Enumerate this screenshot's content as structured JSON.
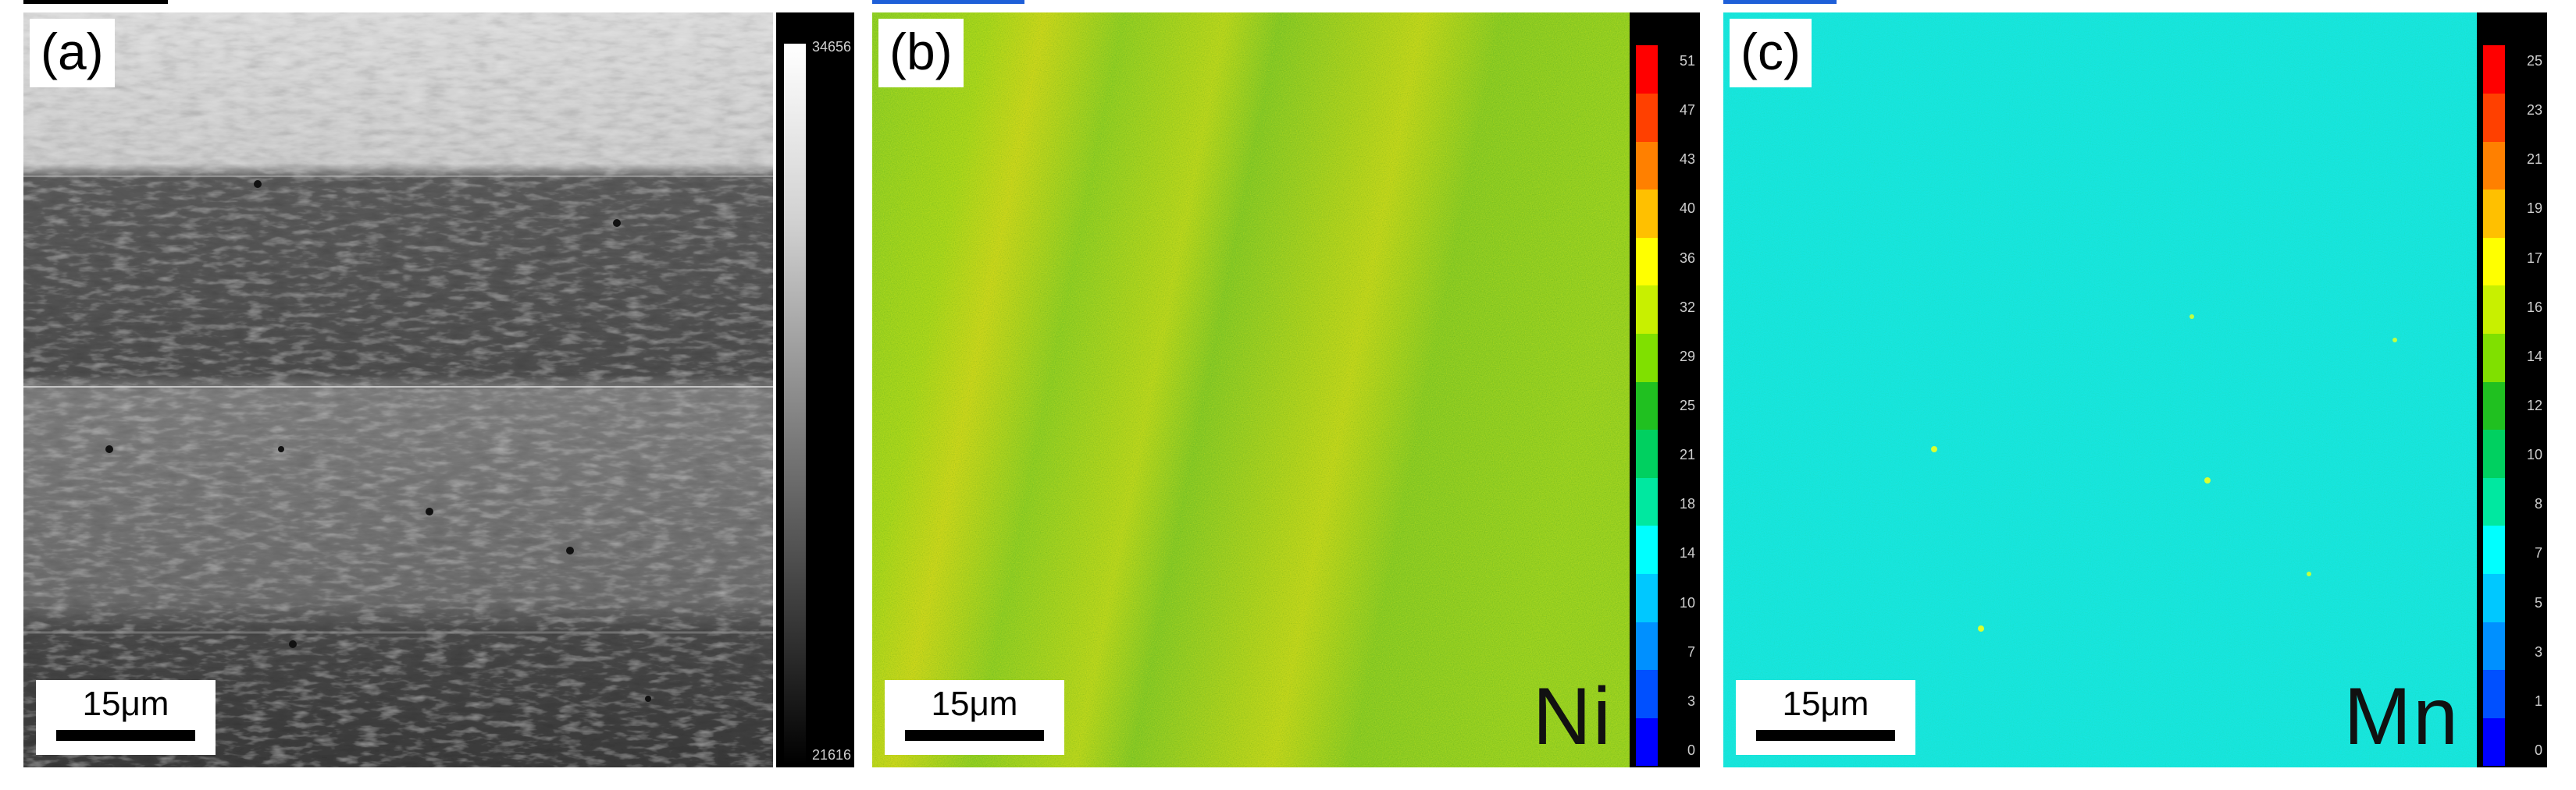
{
  "figure": {
    "panels": [
      {
        "id": "a",
        "label": "(a)",
        "kind": "grayscale-micrograph",
        "scale_bar": "15μm",
        "colorbar_max": "34656",
        "colorbar_min": "21616"
      },
      {
        "id": "b",
        "label": "(b)",
        "kind": "element-map",
        "element": "Ni",
        "scale_bar": "15μm",
        "colorbar_ticks": [
          "51",
          "47",
          "43",
          "40",
          "36",
          "32",
          "29",
          "25",
          "21",
          "18",
          "14",
          "10",
          "7",
          "3",
          "0"
        ]
      },
      {
        "id": "c",
        "label": "(c)",
        "kind": "element-map",
        "element": "Mn",
        "scale_bar": "15μm",
        "colorbar_ticks": [
          "25",
          "23",
          "21",
          "19",
          "17",
          "16",
          "14",
          "12",
          "10",
          "8",
          "7",
          "5",
          "3",
          "1",
          "0"
        ]
      }
    ],
    "colormap": [
      "#0000ff",
      "#0050ff",
      "#0090ff",
      "#00c8ff",
      "#00ffff",
      "#00e8a0",
      "#00d060",
      "#20c020",
      "#80e000",
      "#c8f000",
      "#ffff00",
      "#ffc000",
      "#ff8000",
      "#ff4000",
      "#ff0000"
    ]
  }
}
